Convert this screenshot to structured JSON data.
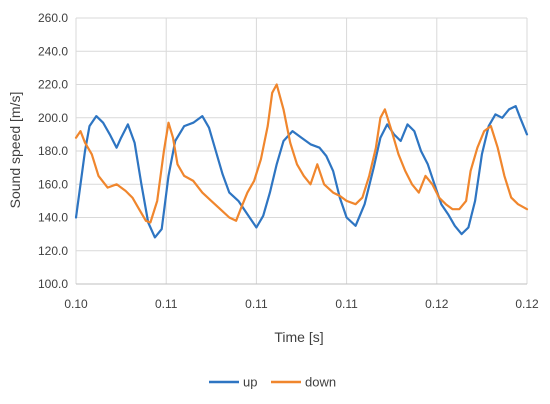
{
  "chart_data": {
    "type": "line",
    "title": "",
    "xlabel": "Time [s]",
    "ylabel": "Sound speed [m/s]",
    "x_tick_labels": [
      "0.10",
      "0.11",
      "0.11",
      "0.11",
      "0.12",
      "0.12"
    ],
    "y_ticks": [
      100,
      120,
      140,
      160,
      180,
      200,
      220,
      240,
      260
    ],
    "y_tick_labels": [
      "100.0",
      "120.0",
      "140.0",
      "160.0",
      "180.0",
      "200.0",
      "220.0",
      "240.0",
      "260.0"
    ],
    "ylim": [
      100,
      260
    ],
    "grid": "horizontal",
    "legend_position": "bottom",
    "series": [
      {
        "name": "up",
        "color": "#2E75C2",
        "values": [
          [
            0.0,
            140
          ],
          [
            0.01,
            160
          ],
          [
            0.02,
            180
          ],
          [
            0.03,
            195
          ],
          [
            0.045,
            201
          ],
          [
            0.06,
            197
          ],
          [
            0.075,
            190
          ],
          [
            0.09,
            182
          ],
          [
            0.1,
            188
          ],
          [
            0.115,
            196
          ],
          [
            0.13,
            185
          ],
          [
            0.145,
            160
          ],
          [
            0.16,
            137
          ],
          [
            0.175,
            128
          ],
          [
            0.19,
            133
          ],
          [
            0.205,
            165
          ],
          [
            0.22,
            186
          ],
          [
            0.24,
            195
          ],
          [
            0.26,
            197
          ],
          [
            0.28,
            201
          ],
          [
            0.295,
            194
          ],
          [
            0.31,
            180
          ],
          [
            0.325,
            166
          ],
          [
            0.34,
            155
          ],
          [
            0.36,
            150
          ],
          [
            0.38,
            142
          ],
          [
            0.4,
            134
          ],
          [
            0.415,
            141
          ],
          [
            0.43,
            155
          ],
          [
            0.445,
            172
          ],
          [
            0.46,
            186
          ],
          [
            0.48,
            192
          ],
          [
            0.5,
            188
          ],
          [
            0.52,
            184
          ],
          [
            0.54,
            182
          ],
          [
            0.555,
            177
          ],
          [
            0.57,
            168
          ],
          [
            0.585,
            152
          ],
          [
            0.6,
            140
          ],
          [
            0.62,
            135
          ],
          [
            0.64,
            148
          ],
          [
            0.66,
            170
          ],
          [
            0.675,
            188
          ],
          [
            0.69,
            196
          ],
          [
            0.705,
            190
          ],
          [
            0.72,
            186
          ],
          [
            0.735,
            196
          ],
          [
            0.75,
            192
          ],
          [
            0.765,
            180
          ],
          [
            0.78,
            172
          ],
          [
            0.795,
            160
          ],
          [
            0.81,
            148
          ],
          [
            0.825,
            142
          ],
          [
            0.84,
            135
          ],
          [
            0.855,
            130
          ],
          [
            0.87,
            134
          ],
          [
            0.885,
            150
          ],
          [
            0.9,
            178
          ],
          [
            0.915,
            195
          ],
          [
            0.93,
            202
          ],
          [
            0.945,
            200
          ],
          [
            0.96,
            205
          ],
          [
            0.975,
            207
          ],
          [
            0.985,
            200
          ],
          [
            1.0,
            190
          ]
        ]
      },
      {
        "name": "down",
        "color": "#F0862D",
        "values": [
          [
            0.0,
            188
          ],
          [
            0.01,
            192
          ],
          [
            0.02,
            185
          ],
          [
            0.035,
            178
          ],
          [
            0.05,
            165
          ],
          [
            0.07,
            158
          ],
          [
            0.09,
            160
          ],
          [
            0.11,
            156
          ],
          [
            0.125,
            152
          ],
          [
            0.14,
            145
          ],
          [
            0.155,
            138
          ],
          [
            0.165,
            137
          ],
          [
            0.18,
            150
          ],
          [
            0.195,
            180
          ],
          [
            0.205,
            197
          ],
          [
            0.215,
            188
          ],
          [
            0.225,
            172
          ],
          [
            0.24,
            165
          ],
          [
            0.26,
            162
          ],
          [
            0.28,
            155
          ],
          [
            0.3,
            150
          ],
          [
            0.32,
            145
          ],
          [
            0.34,
            140
          ],
          [
            0.355,
            138
          ],
          [
            0.365,
            145
          ],
          [
            0.38,
            155
          ],
          [
            0.395,
            162
          ],
          [
            0.41,
            175
          ],
          [
            0.425,
            195
          ],
          [
            0.435,
            215
          ],
          [
            0.445,
            220
          ],
          [
            0.46,
            205
          ],
          [
            0.475,
            185
          ],
          [
            0.49,
            172
          ],
          [
            0.505,
            165
          ],
          [
            0.52,
            160
          ],
          [
            0.535,
            172
          ],
          [
            0.55,
            160
          ],
          [
            0.57,
            155
          ],
          [
            0.585,
            153
          ],
          [
            0.6,
            150
          ],
          [
            0.62,
            148
          ],
          [
            0.635,
            152
          ],
          [
            0.65,
            165
          ],
          [
            0.665,
            182
          ],
          [
            0.675,
            200
          ],
          [
            0.685,
            205
          ],
          [
            0.7,
            192
          ],
          [
            0.715,
            178
          ],
          [
            0.73,
            168
          ],
          [
            0.745,
            160
          ],
          [
            0.76,
            155
          ],
          [
            0.775,
            165
          ],
          [
            0.79,
            160
          ],
          [
            0.805,
            152
          ],
          [
            0.82,
            148
          ],
          [
            0.835,
            145
          ],
          [
            0.85,
            145
          ],
          [
            0.865,
            150
          ],
          [
            0.875,
            168
          ],
          [
            0.89,
            182
          ],
          [
            0.905,
            192
          ],
          [
            0.92,
            195
          ],
          [
            0.935,
            182
          ],
          [
            0.95,
            165
          ],
          [
            0.965,
            152
          ],
          [
            0.98,
            148
          ],
          [
            1.0,
            145
          ]
        ]
      }
    ]
  }
}
